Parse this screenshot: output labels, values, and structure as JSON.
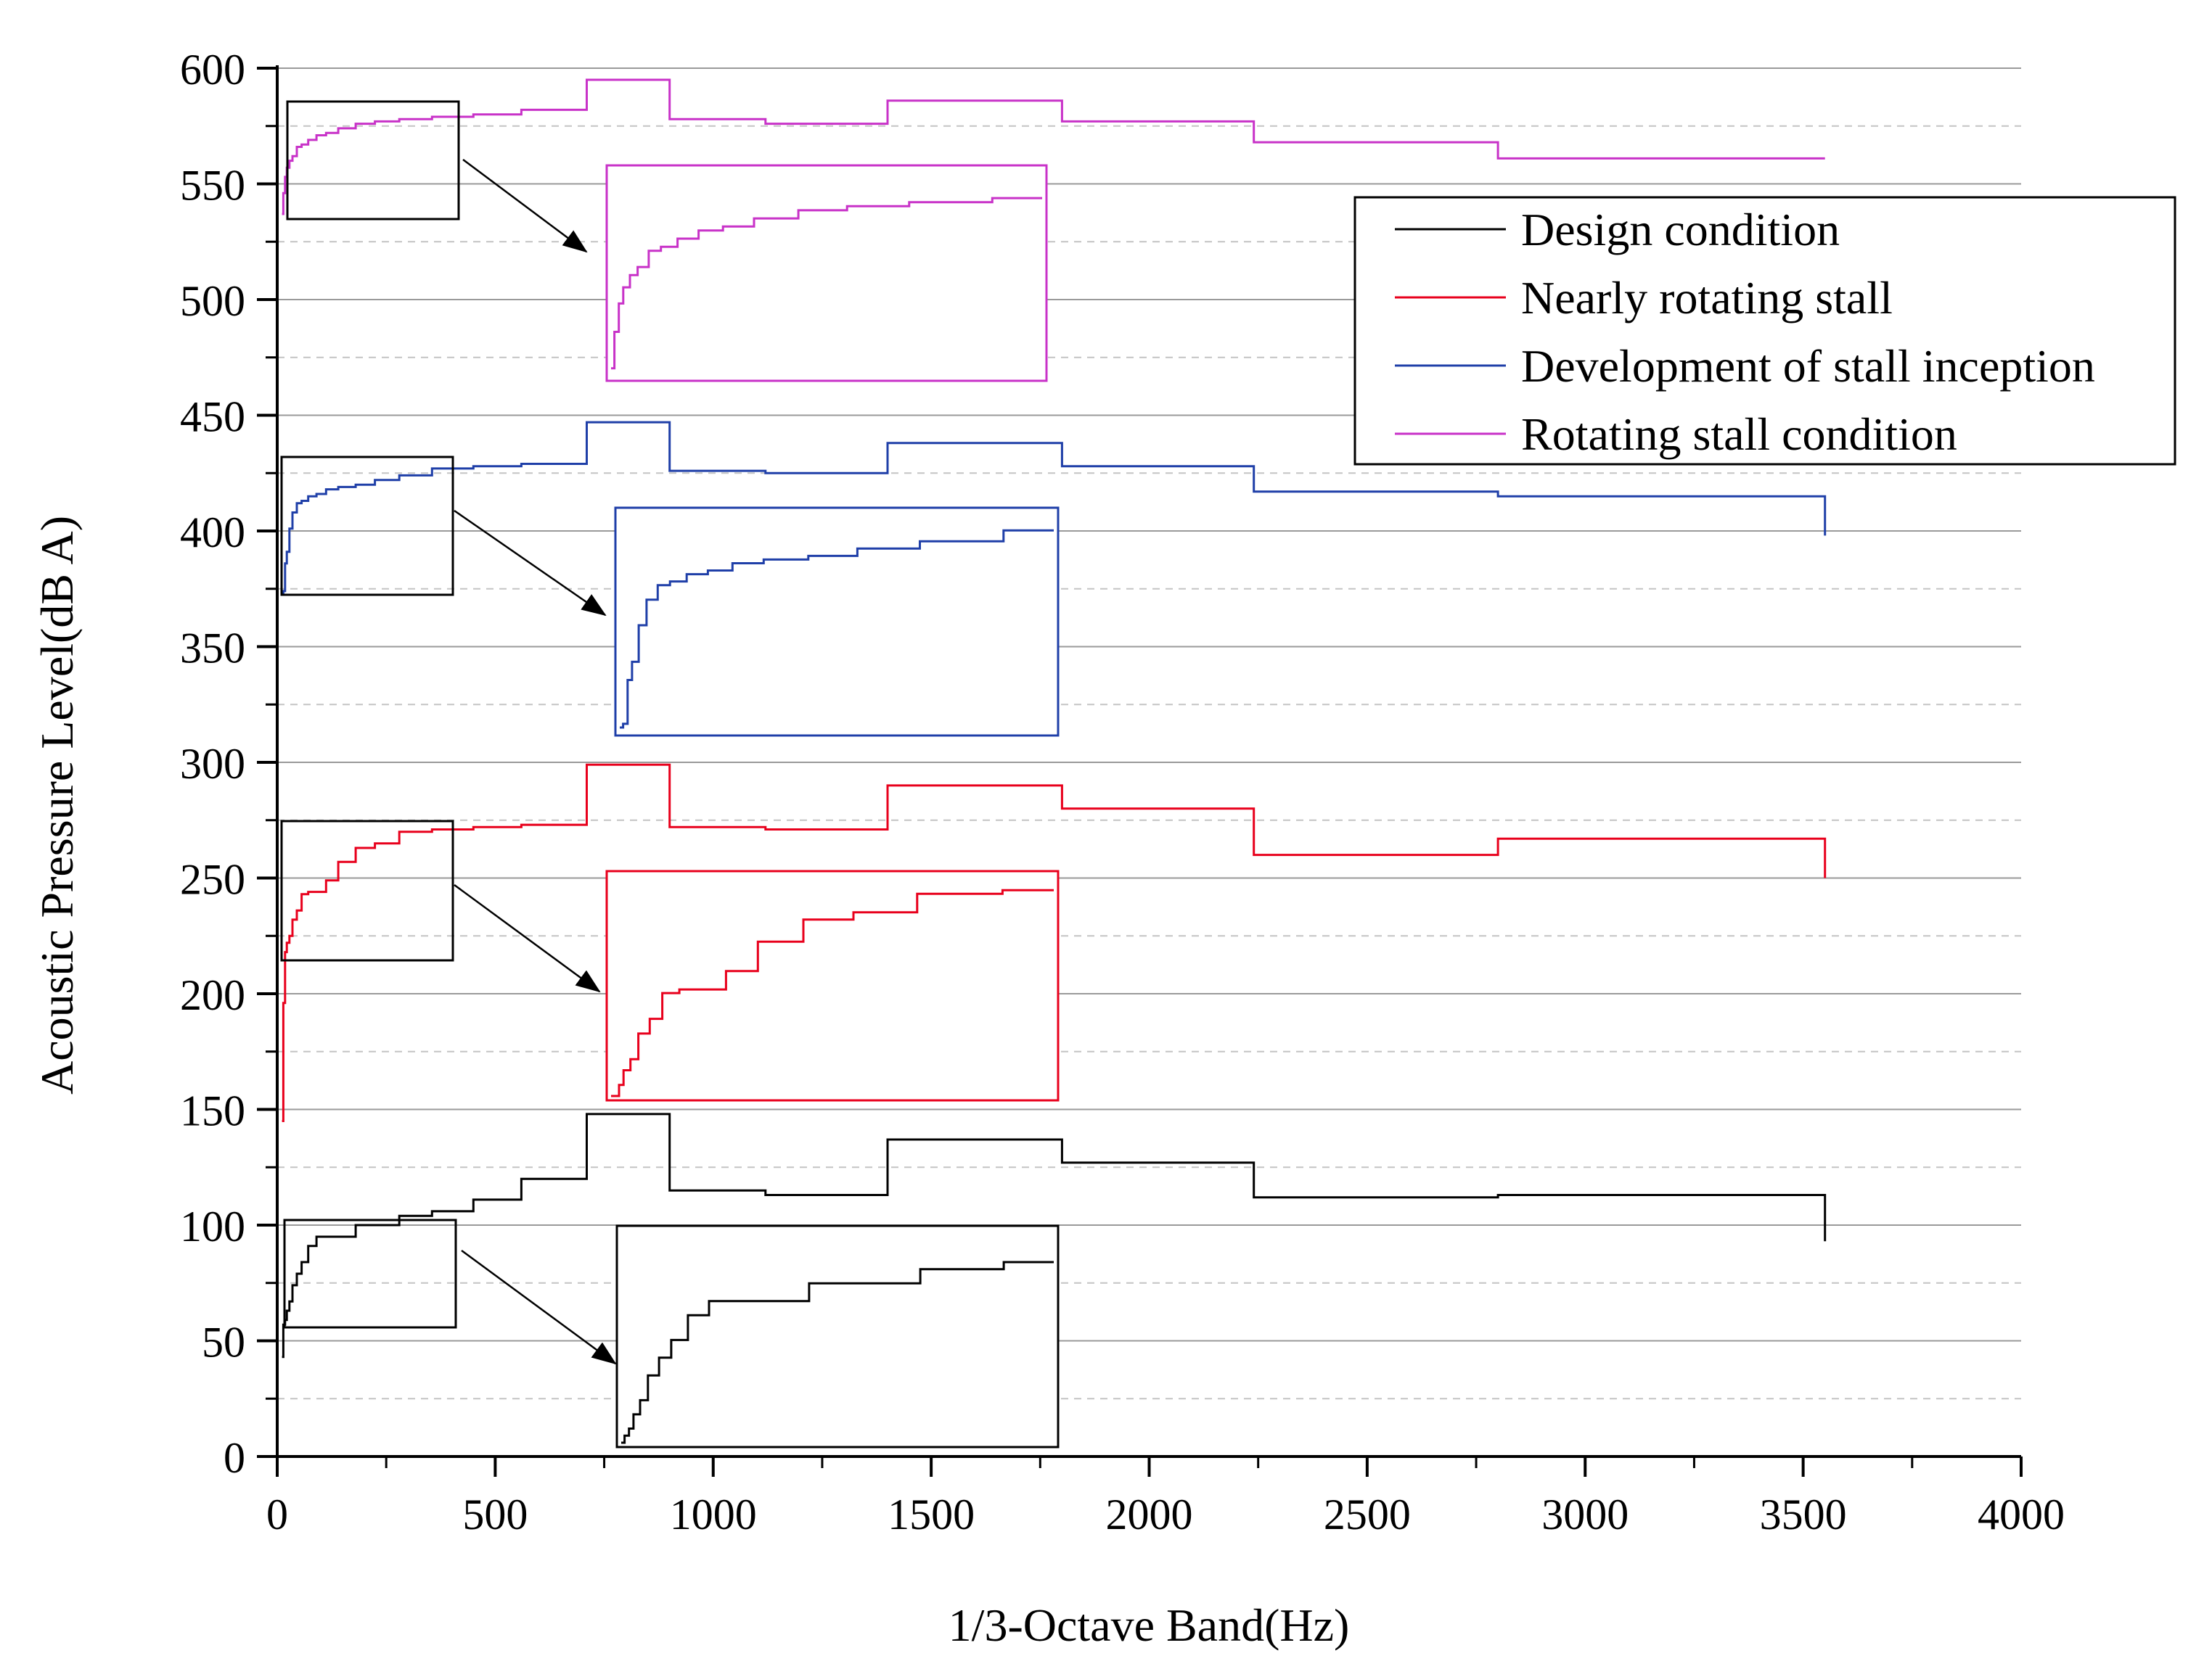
{
  "chart_data": {
    "type": "line",
    "step": true,
    "title": "",
    "xlabel": "1/3-Octave Band(Hz)",
    "ylabel": "Acoustic Pressure Level(dB A)",
    "xlim": [
      0,
      4000
    ],
    "ylim": [
      0,
      600
    ],
    "xticks": [
      0,
      500,
      1000,
      1500,
      2000,
      2500,
      3000,
      3500,
      4000
    ],
    "yticks": [
      0,
      50,
      100,
      150,
      200,
      250,
      300,
      350,
      400,
      450,
      500,
      550,
      600
    ],
    "grid": "horizontal",
    "legend_position": "top-right",
    "band_centers": [
      12.5,
      16,
      20,
      25,
      31.5,
      40,
      50,
      63,
      80,
      100,
      125,
      160,
      200,
      250,
      315,
      400,
      500,
      630,
      800,
      1000,
      1250,
      1600,
      2000,
      2500,
      3150
    ],
    "band_edges": [
      11,
      14,
      18,
      22,
      28,
      35,
      45,
      56,
      71,
      90,
      112,
      140,
      180,
      224,
      280,
      355,
      450,
      560,
      710,
      900,
      1120,
      1400,
      1800,
      2240,
      2800,
      3550
    ],
    "series": [
      {
        "name": "Design condition",
        "color": "#000000",
        "values": [
          43,
          57,
          59,
          63,
          67,
          74,
          79,
          84,
          91,
          95,
          95,
          95,
          100,
          100,
          104,
          106,
          111,
          120,
          148,
          115,
          113,
          137,
          127,
          112,
          113,
          93
        ]
      },
      {
        "name": "Nearly rotating stall",
        "color": "#e8001c",
        "values": [
          145,
          196,
          218,
          222,
          225,
          232,
          236,
          243,
          244,
          244,
          249,
          257,
          263,
          265,
          270,
          271,
          272,
          273,
          299,
          272,
          271,
          290,
          280,
          260,
          267,
          250
        ]
      },
      {
        "name": "Development of stall inception",
        "color": "#1f3fa8",
        "values": [
          373,
          374,
          386,
          391,
          401,
          408,
          412,
          413,
          415,
          416,
          418,
          419,
          420,
          422,
          424,
          427,
          428,
          429,
          447,
          426,
          425,
          438,
          428,
          417,
          415,
          398
        ]
      },
      {
        "name": "Rotating stall condition",
        "color": "#c832c8",
        "values": [
          537,
          546,
          553,
          557,
          560,
          562,
          566,
          567,
          569,
          571,
          572,
          574,
          576,
          577,
          578,
          579,
          580,
          582,
          595,
          578,
          576,
          586,
          577,
          568,
          561,
          561
        ]
      }
    ],
    "zoom_insets": [
      {
        "series": 0,
        "source_xlim": [
          11,
          400
        ],
        "source_ylim": [
          55,
          115
        ]
      },
      {
        "series": 1,
        "source_xlim": [
          11,
          400
        ],
        "source_ylim": [
          215,
          275
        ]
      },
      {
        "series": 2,
        "source_xlim": [
          11,
          400
        ],
        "source_ylim": [
          372,
          432
        ]
      },
      {
        "series": 3,
        "source_xlim": [
          11,
          400
        ],
        "source_ylim": [
          535,
          586
        ]
      }
    ]
  }
}
